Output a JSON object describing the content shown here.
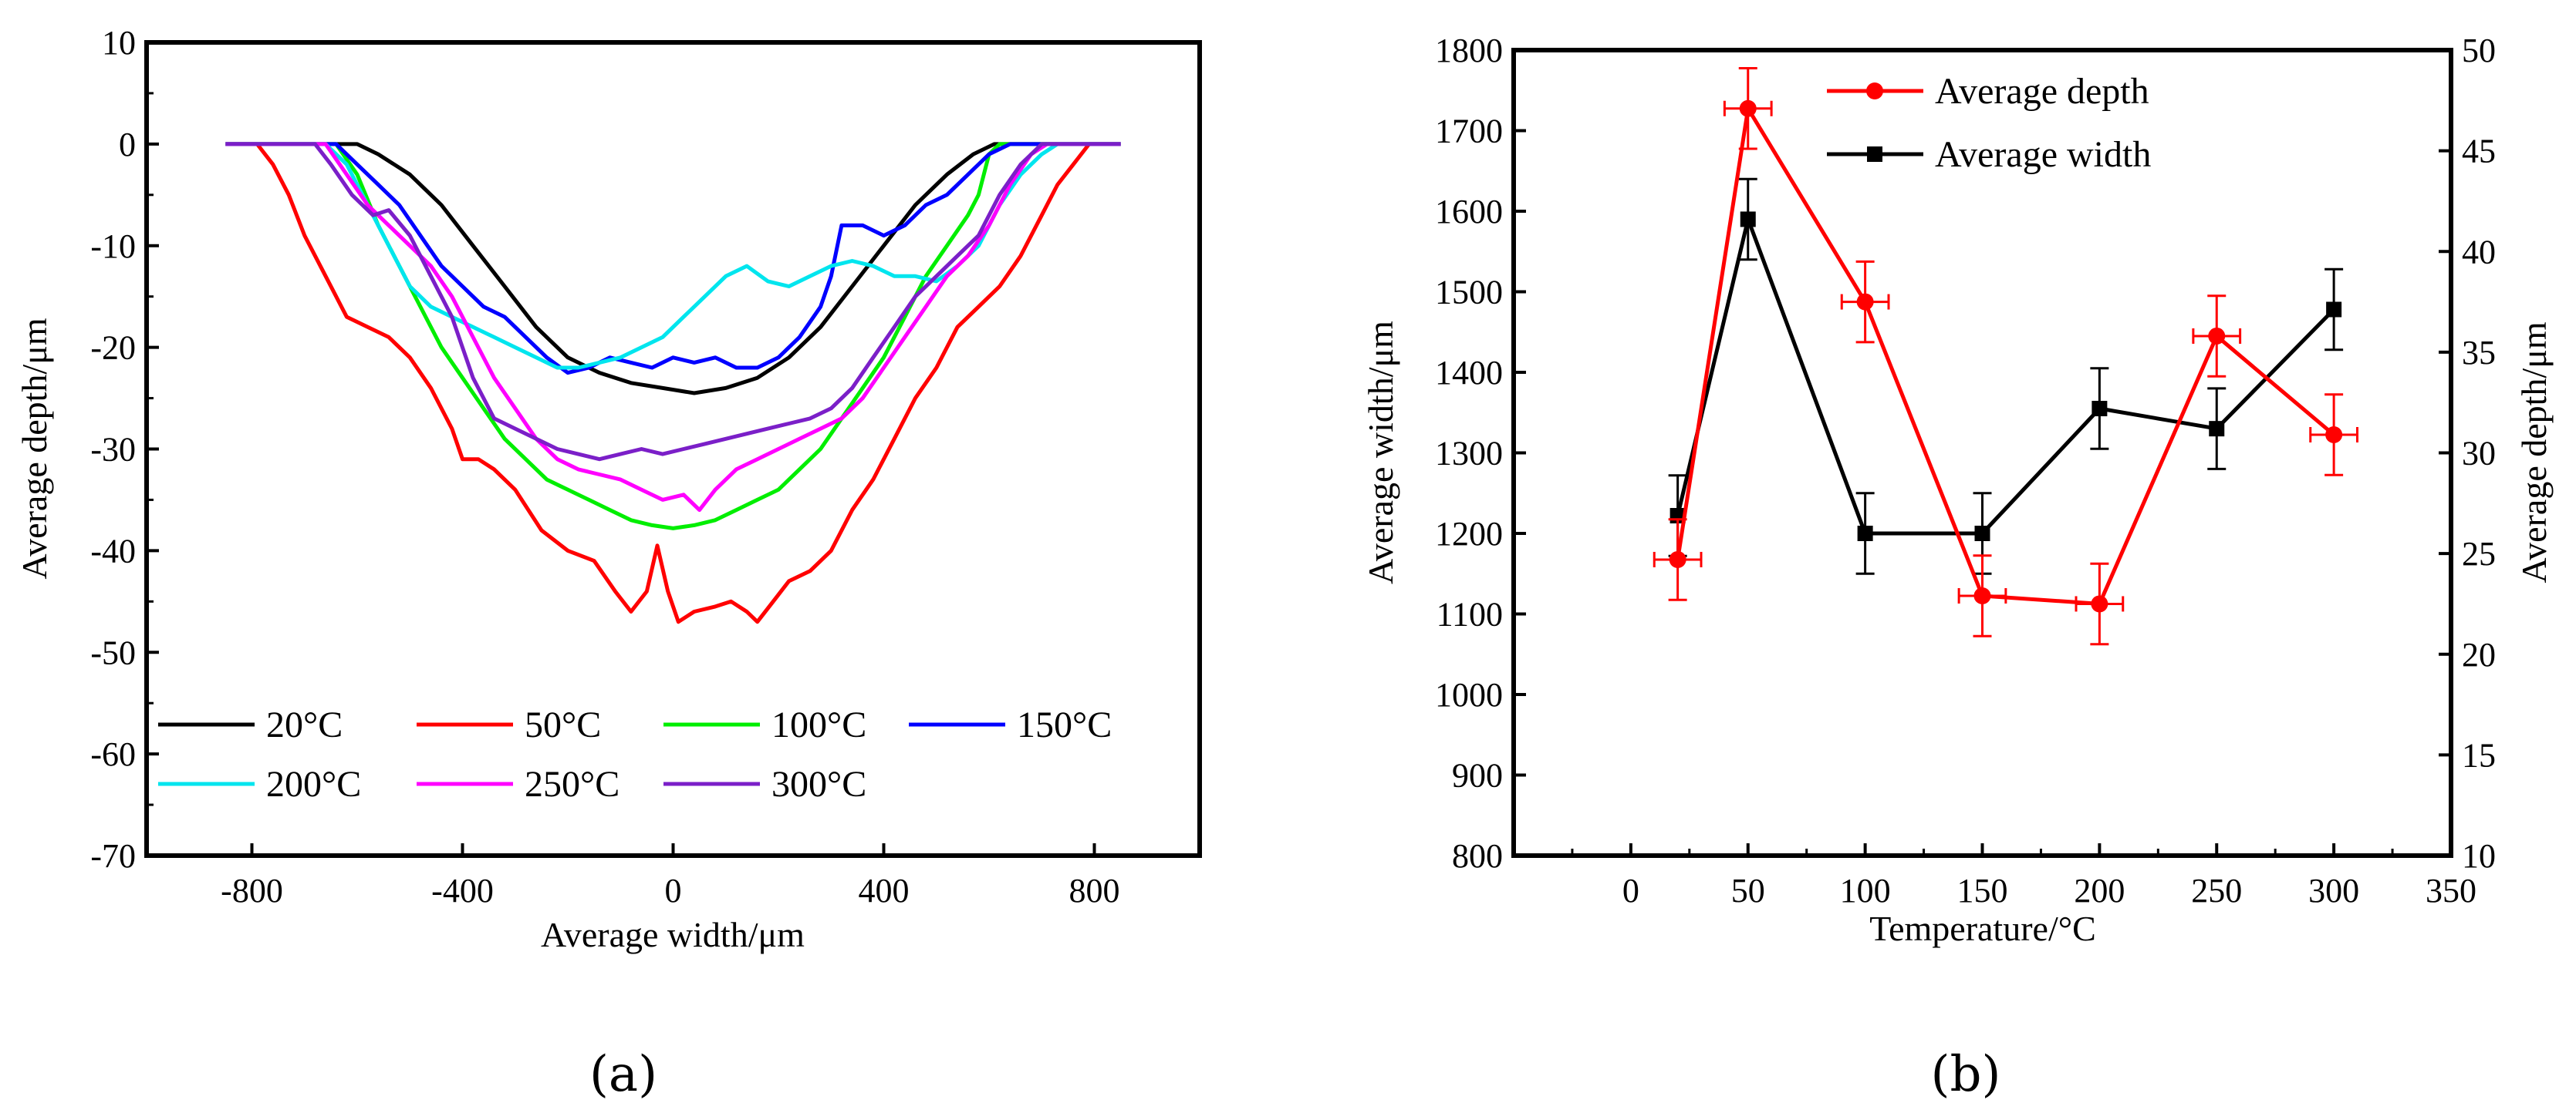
{
  "chart_data": [
    {
      "id": "a",
      "type": "line",
      "caption": "(a)",
      "xlabel": "Average width/μm",
      "ylabel": "Average depth/μm",
      "xlim": [
        -1000,
        1000
      ],
      "ylim": [
        -70,
        10
      ],
      "xticks": [
        -800,
        -400,
        0,
        400,
        800
      ],
      "yticks": [
        10,
        0,
        -10,
        -20,
        -30,
        -40,
        -50,
        -60,
        -70
      ],
      "series": [
        {
          "name": "20°C",
          "color": "#000000",
          "points": [
            [
              -850,
              0
            ],
            [
              -600,
              0
            ],
            [
              -560,
              -1
            ],
            [
              -500,
              -3
            ],
            [
              -440,
              -6
            ],
            [
              -380,
              -10
            ],
            [
              -320,
              -14
            ],
            [
              -260,
              -18
            ],
            [
              -200,
              -21
            ],
            [
              -140,
              -22.5
            ],
            [
              -80,
              -23.5
            ],
            [
              -20,
              -24
            ],
            [
              40,
              -24.5
            ],
            [
              100,
              -24
            ],
            [
              160,
              -23
            ],
            [
              220,
              -21
            ],
            [
              280,
              -18
            ],
            [
              340,
              -14
            ],
            [
              400,
              -10
            ],
            [
              460,
              -6
            ],
            [
              520,
              -3
            ],
            [
              570,
              -1
            ],
            [
              610,
              0
            ],
            [
              850,
              0
            ]
          ]
        },
        {
          "name": "50°C",
          "color": "#ff0000",
          "points": [
            [
              -850,
              0
            ],
            [
              -790,
              0
            ],
            [
              -760,
              -2
            ],
            [
              -730,
              -5
            ],
            [
              -700,
              -9
            ],
            [
              -660,
              -13
            ],
            [
              -620,
              -17
            ],
            [
              -580,
              -18
            ],
            [
              -540,
              -19
            ],
            [
              -500,
              -21
            ],
            [
              -460,
              -24
            ],
            [
              -420,
              -28
            ],
            [
              -400,
              -31
            ],
            [
              -370,
              -31
            ],
            [
              -340,
              -32
            ],
            [
              -300,
              -34
            ],
            [
              -250,
              -38
            ],
            [
              -200,
              -40
            ],
            [
              -150,
              -41
            ],
            [
              -110,
              -44
            ],
            [
              -80,
              -46
            ],
            [
              -50,
              -44
            ],
            [
              -30,
              -39.5
            ],
            [
              -10,
              -44
            ],
            [
              10,
              -47
            ],
            [
              40,
              -46
            ],
            [
              80,
              -45.5
            ],
            [
              110,
              -45
            ],
            [
              140,
              -46
            ],
            [
              160,
              -47
            ],
            [
              190,
              -45
            ],
            [
              220,
              -43
            ],
            [
              260,
              -42
            ],
            [
              300,
              -40
            ],
            [
              340,
              -36
            ],
            [
              380,
              -33
            ],
            [
              420,
              -29
            ],
            [
              460,
              -25
            ],
            [
              500,
              -22
            ],
            [
              540,
              -18
            ],
            [
              580,
              -16
            ],
            [
              620,
              -14
            ],
            [
              660,
              -11
            ],
            [
              700,
              -7
            ],
            [
              730,
              -4
            ],
            [
              760,
              -2
            ],
            [
              790,
              0
            ],
            [
              850,
              0
            ]
          ]
        },
        {
          "name": "100°C",
          "color": "#00ee00",
          "points": [
            [
              -850,
              0
            ],
            [
              -640,
              0
            ],
            [
              -600,
              -3
            ],
            [
              -560,
              -8
            ],
            [
              -520,
              -12
            ],
            [
              -480,
              -16
            ],
            [
              -440,
              -20
            ],
            [
              -400,
              -23
            ],
            [
              -360,
              -26
            ],
            [
              -320,
              -29
            ],
            [
              -280,
              -31
            ],
            [
              -240,
              -33
            ],
            [
              -200,
              -34
            ],
            [
              -160,
              -35
            ],
            [
              -120,
              -36
            ],
            [
              -80,
              -37
            ],
            [
              -40,
              -37.5
            ],
            [
              0,
              -37.8
            ],
            [
              40,
              -37.5
            ],
            [
              80,
              -37
            ],
            [
              120,
              -36
            ],
            [
              160,
              -35
            ],
            [
              200,
              -34
            ],
            [
              240,
              -32
            ],
            [
              280,
              -30
            ],
            [
              320,
              -27
            ],
            [
              360,
              -24
            ],
            [
              400,
              -21
            ],
            [
              440,
              -17
            ],
            [
              480,
              -13
            ],
            [
              520,
              -10
            ],
            [
              560,
              -7
            ],
            [
              580,
              -5
            ],
            [
              600,
              -1
            ],
            [
              620,
              0
            ],
            [
              850,
              0
            ]
          ]
        },
        {
          "name": "150°C",
          "color": "#0000ff",
          "points": [
            [
              -850,
              0
            ],
            [
              -640,
              0
            ],
            [
              -600,
              -2
            ],
            [
              -560,
              -4
            ],
            [
              -520,
              -6
            ],
            [
              -480,
              -9
            ],
            [
              -440,
              -12
            ],
            [
              -400,
              -14
            ],
            [
              -360,
              -16
            ],
            [
              -320,
              -17
            ],
            [
              -280,
              -19
            ],
            [
              -240,
              -21
            ],
            [
              -200,
              -22.5
            ],
            [
              -160,
              -22
            ],
            [
              -120,
              -21
            ],
            [
              -80,
              -21.5
            ],
            [
              -40,
              -22
            ],
            [
              0,
              -21
            ],
            [
              40,
              -21.5
            ],
            [
              80,
              -21
            ],
            [
              120,
              -22
            ],
            [
              160,
              -22
            ],
            [
              200,
              -21
            ],
            [
              240,
              -19
            ],
            [
              280,
              -16
            ],
            [
              300,
              -13
            ],
            [
              320,
              -8
            ],
            [
              360,
              -8
            ],
            [
              400,
              -9
            ],
            [
              440,
              -8
            ],
            [
              480,
              -6
            ],
            [
              520,
              -5
            ],
            [
              560,
              -3
            ],
            [
              600,
              -1
            ],
            [
              640,
              0
            ],
            [
              850,
              0
            ]
          ]
        },
        {
          "name": "200°C",
          "color": "#00e5ee",
          "points": [
            [
              -850,
              0
            ],
            [
              -660,
              0
            ],
            [
              -620,
              -2
            ],
            [
              -580,
              -6
            ],
            [
              -540,
              -10
            ],
            [
              -500,
              -14
            ],
            [
              -460,
              -16
            ],
            [
              -420,
              -17
            ],
            [
              -380,
              -18
            ],
            [
              -340,
              -19
            ],
            [
              -300,
              -20
            ],
            [
              -260,
              -21
            ],
            [
              -220,
              -22
            ],
            [
              -180,
              -22
            ],
            [
              -140,
              -21.5
            ],
            [
              -100,
              -21
            ],
            [
              -60,
              -20
            ],
            [
              -20,
              -19
            ],
            [
              20,
              -17
            ],
            [
              60,
              -15
            ],
            [
              100,
              -13
            ],
            [
              140,
              -12
            ],
            [
              180,
              -13.5
            ],
            [
              220,
              -14
            ],
            [
              260,
              -13
            ],
            [
              300,
              -12
            ],
            [
              340,
              -11.5
            ],
            [
              380,
              -12
            ],
            [
              420,
              -13
            ],
            [
              460,
              -13
            ],
            [
              500,
              -13.5
            ],
            [
              540,
              -12
            ],
            [
              580,
              -10
            ],
            [
              620,
              -6
            ],
            [
              660,
              -3
            ],
            [
              700,
              -1
            ],
            [
              730,
              0
            ],
            [
              850,
              0
            ]
          ]
        },
        {
          "name": "250°C",
          "color": "#ff00ff",
          "points": [
            [
              -850,
              0
            ],
            [
              -660,
              0
            ],
            [
              -620,
              -3
            ],
            [
              -580,
              -6
            ],
            [
              -540,
              -8
            ],
            [
              -500,
              -10
            ],
            [
              -460,
              -12
            ],
            [
              -420,
              -15
            ],
            [
              -380,
              -19
            ],
            [
              -340,
              -23
            ],
            [
              -300,
              -26
            ],
            [
              -260,
              -29
            ],
            [
              -220,
              -31
            ],
            [
              -180,
              -32
            ],
            [
              -140,
              -32.5
            ],
            [
              -100,
              -33
            ],
            [
              -60,
              -34
            ],
            [
              -20,
              -35
            ],
            [
              20,
              -34.5
            ],
            [
              50,
              -36
            ],
            [
              80,
              -34
            ],
            [
              120,
              -32
            ],
            [
              160,
              -31
            ],
            [
              200,
              -30
            ],
            [
              240,
              -29
            ],
            [
              280,
              -28
            ],
            [
              320,
              -27
            ],
            [
              360,
              -25
            ],
            [
              400,
              -22
            ],
            [
              440,
              -19
            ],
            [
              480,
              -16
            ],
            [
              520,
              -13
            ],
            [
              560,
              -11
            ],
            [
              600,
              -8
            ],
            [
              640,
              -4
            ],
            [
              680,
              -1
            ],
            [
              710,
              0
            ],
            [
              850,
              0
            ]
          ]
        },
        {
          "name": "300°C",
          "color": "#7b1fc8",
          "points": [
            [
              -850,
              0
            ],
            [
              -680,
              0
            ],
            [
              -650,
              -2
            ],
            [
              -610,
              -5
            ],
            [
              -570,
              -7
            ],
            [
              -540,
              -6.5
            ],
            [
              -500,
              -9
            ],
            [
              -460,
              -13
            ],
            [
              -420,
              -17
            ],
            [
              -380,
              -23
            ],
            [
              -340,
              -27
            ],
            [
              -300,
              -28
            ],
            [
              -260,
              -29
            ],
            [
              -220,
              -30
            ],
            [
              -180,
              -30.5
            ],
            [
              -140,
              -31
            ],
            [
              -100,
              -30.5
            ],
            [
              -60,
              -30
            ],
            [
              -20,
              -30.5
            ],
            [
              20,
              -30
            ],
            [
              60,
              -29.5
            ],
            [
              100,
              -29
            ],
            [
              140,
              -28.5
            ],
            [
              180,
              -28
            ],
            [
              220,
              -27.5
            ],
            [
              260,
              -27
            ],
            [
              300,
              -26
            ],
            [
              340,
              -24
            ],
            [
              380,
              -21
            ],
            [
              420,
              -18
            ],
            [
              460,
              -15
            ],
            [
              500,
              -13
            ],
            [
              540,
              -11
            ],
            [
              580,
              -9
            ],
            [
              620,
              -5
            ],
            [
              660,
              -2
            ],
            [
              700,
              0
            ],
            [
              850,
              0
            ]
          ]
        }
      ]
    },
    {
      "id": "b",
      "type": "line",
      "caption": "(b)",
      "xlabel": "Temperature/°C",
      "ylabel_left": "Average width/μm",
      "ylabel_right": "Average depth/μm",
      "xlim": [
        -50,
        350
      ],
      "ylim_left": [
        800,
        1800
      ],
      "ylim_right": [
        10,
        50
      ],
      "xticks": [
        0,
        50,
        100,
        150,
        200,
        250,
        300,
        350
      ],
      "yticks_left": [
        800,
        900,
        1000,
        1100,
        1200,
        1300,
        1400,
        1500,
        1600,
        1700,
        1800
      ],
      "yticks_right": [
        10,
        15,
        20,
        25,
        30,
        35,
        40,
        45,
        50
      ],
      "x": [
        20,
        50,
        100,
        150,
        200,
        250,
        300
      ],
      "series": [
        {
          "name": "Average depth",
          "axis": "right",
          "color": "#ff0000",
          "marker": "circle",
          "values": [
            24.7,
            47.1,
            37.5,
            22.9,
            22.5,
            35.8,
            30.9
          ],
          "yerr": 2,
          "xerr": 10
        },
        {
          "name": "Average width",
          "axis": "left",
          "color": "#000000",
          "marker": "square",
          "values": [
            1222,
            1590,
            1200,
            1200,
            1355,
            1330,
            1478
          ],
          "yerr": 50
        }
      ]
    }
  ]
}
